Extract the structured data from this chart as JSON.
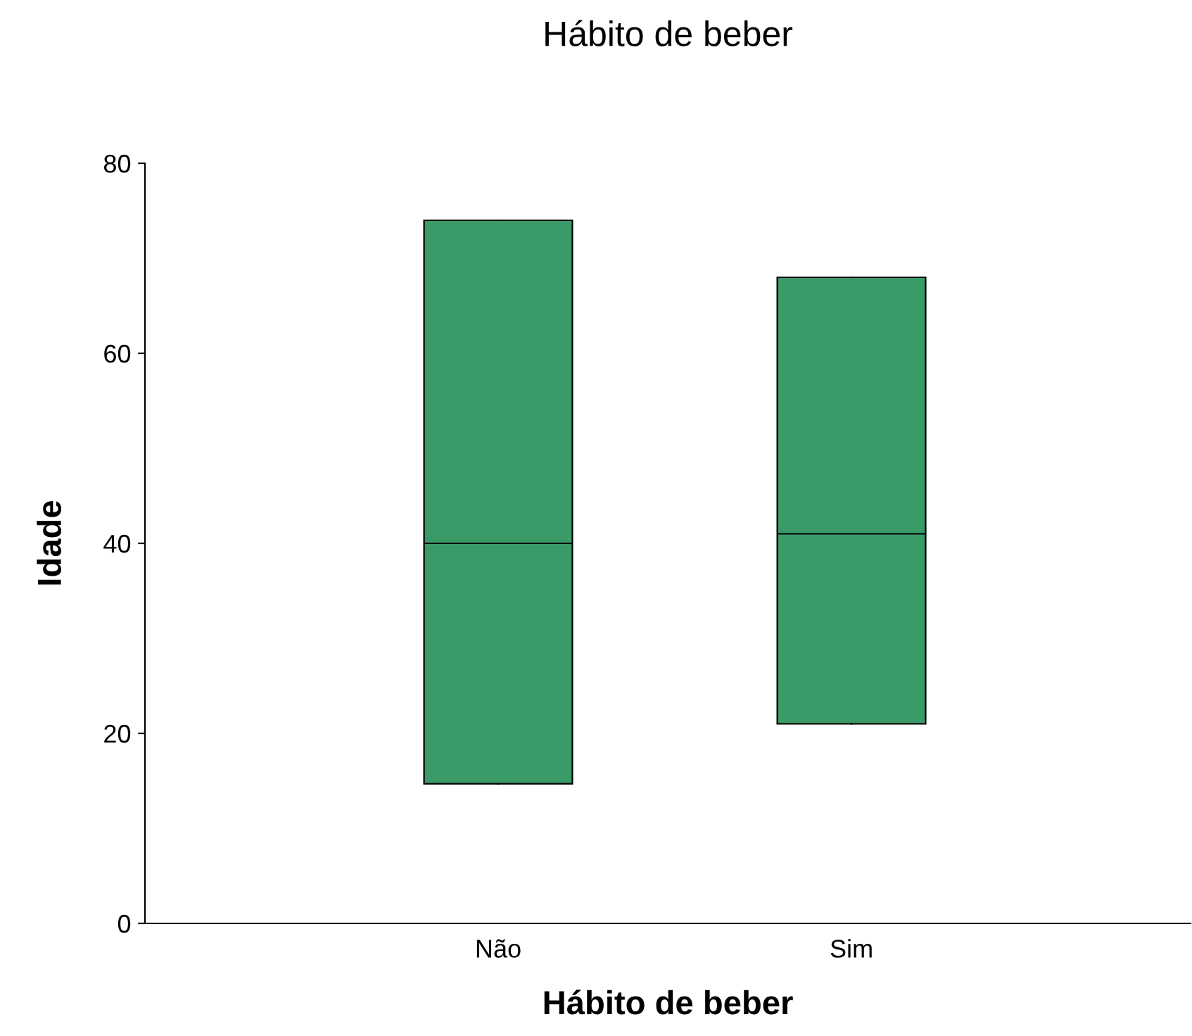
{
  "chart_data": {
    "type": "box",
    "title": "Hábito de beber",
    "xlabel": "Hábito de beber",
    "ylabel": "Idade",
    "categories": [
      "Não",
      "Sim"
    ],
    "boxes": [
      {
        "low": 14.7,
        "q1": 14.7,
        "median": 40,
        "q3": 74,
        "high": 74
      },
      {
        "low": 21,
        "q1": 21,
        "median": 41,
        "q3": 68,
        "high": 68
      }
    ],
    "color": "#3a9a68",
    "ylim": [
      0,
      80
    ],
    "yticks": [
      0,
      20,
      40,
      60,
      80
    ],
    "grid": false,
    "legend": false
  }
}
